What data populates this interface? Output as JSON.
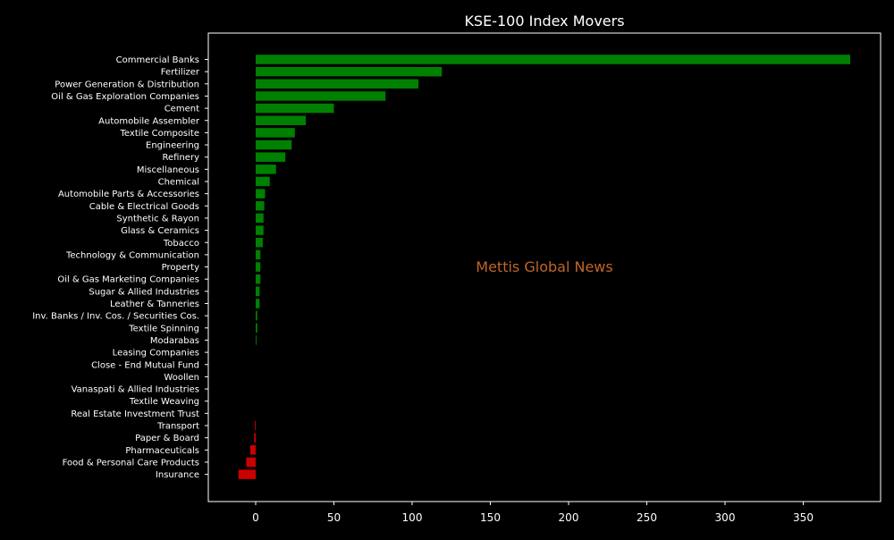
{
  "chart_data": {
    "type": "bar",
    "orientation": "horizontal",
    "title": "KSE-100 Index Movers",
    "watermark": "Mettis Global News",
    "xlabel": "",
    "ylabel": "",
    "xlim": [
      -30,
      400
    ],
    "xticks": [
      0,
      50,
      100,
      150,
      200,
      250,
      300,
      350
    ],
    "grid": false,
    "colors": {
      "positive": "#008000",
      "negative": "#cc0000",
      "background": "#000000",
      "text": "#ffffff",
      "watermark": "#c0652a"
    },
    "categories": [
      "Commercial Banks",
      "Fertilizer",
      "Power Generation & Distribution",
      "Oil & Gas Exploration Companies",
      "Cement",
      "Automobile Assembler",
      "Textile Composite",
      "Engineering",
      "Refinery",
      "Miscellaneous",
      "Chemical",
      "Automobile Parts & Accessories",
      "Cable & Electrical Goods",
      "Synthetic & Rayon",
      "Glass & Ceramics",
      "Tobacco",
      "Technology & Communication",
      "Property",
      "Oil & Gas Marketing Companies",
      "Sugar & Allied Industries",
      "Leather & Tanneries",
      "Inv. Banks / Inv. Cos. / Securities Cos.",
      "Textile Spinning",
      "Modarabas",
      "Leasing Companies",
      "Close - End Mutual Fund",
      "Woollen",
      "Vanaspati & Allied Industries",
      "Textile Weaving",
      "Real Estate Investment Trust",
      "Transport",
      "Paper & Board",
      "Pharmaceuticals",
      "Food & Personal Care Products",
      "Insurance"
    ],
    "values": [
      380,
      119,
      104,
      83,
      50,
      32,
      25,
      23,
      19,
      13,
      9,
      6,
      5.5,
      5,
      5,
      4.5,
      3,
      3,
      3,
      2.5,
      2.5,
      1,
      1,
      0.5,
      0,
      0,
      0,
      0,
      0,
      0,
      -0.5,
      -1,
      -3.5,
      -6,
      -11
    ]
  }
}
